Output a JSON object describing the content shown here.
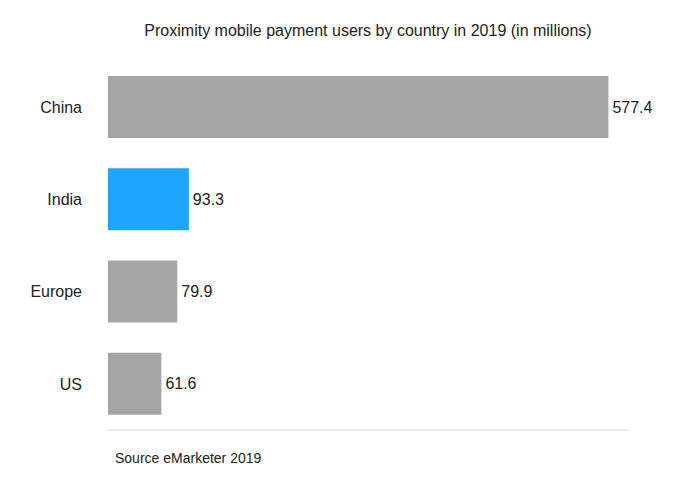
{
  "chart_data": {
    "type": "bar",
    "title": "Proximity mobile payment users by country in 2019 (in millions)",
    "annotations": [
      "Source eMarketer 2019"
    ],
    "categories": [
      "China",
      "India",
      "Europe",
      "US"
    ],
    "values": [
      577.4,
      93.3,
      79.9,
      61.6
    ],
    "colors": [
      "#a5a5a5",
      "#1ea5fc",
      "#a5a5a5",
      "#a5a5a5"
    ],
    "orientation": "horizontal",
    "data_labels": true,
    "tick_labels": "y",
    "grid": false,
    "xlim": [
      0,
      600
    ],
    "xticks": [
      0,
      600
    ]
  }
}
